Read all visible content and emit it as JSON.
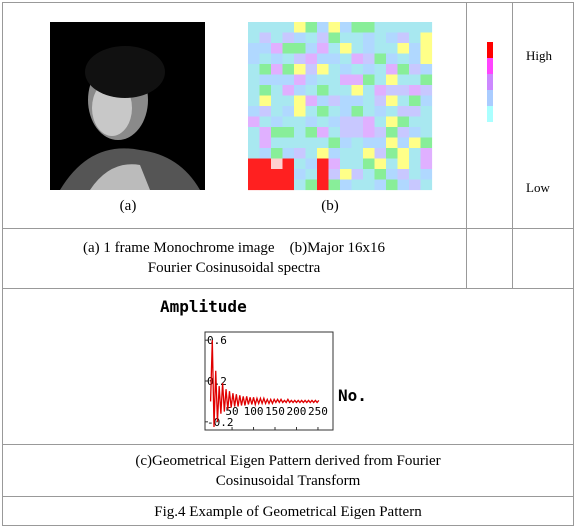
{
  "panel_labels": [
    "(a)",
    "(b)"
  ],
  "colorbar": {
    "high": "High",
    "low": "Low",
    "colors": [
      "#ff0000",
      "#ff44ff",
      "#cc88ff",
      "#aaccff",
      "#aaffff"
    ]
  },
  "caption_ab": [
    "(a) 1 frame Monochrome image    (b)Major 16x16",
    "Fourier Cosinusoidal spectra"
  ],
  "chart_data": {
    "type": "line",
    "y_label": "Amplitude",
    "x_label": "No.",
    "xlim": [
      -13,
      285
    ],
    "ylim": [
      -0.28,
      0.68
    ],
    "xticks": [
      50,
      100,
      150,
      200,
      250
    ],
    "yticks": [
      0.6,
      0.2,
      -0.2
    ],
    "x": [
      0,
      4,
      8,
      12,
      16,
      20,
      24,
      28,
      32,
      36,
      40,
      44,
      48,
      52,
      56,
      60,
      64,
      68,
      72,
      76,
      80,
      84,
      88,
      92,
      96,
      100,
      104,
      108,
      112,
      116,
      120,
      124,
      128,
      132,
      136,
      140,
      144,
      148,
      152,
      156,
      160,
      164,
      168,
      172,
      176,
      180,
      184,
      188,
      192,
      196,
      200,
      204,
      208,
      212,
      216,
      220,
      224,
      228,
      232,
      236,
      240,
      244,
      248,
      252
    ],
    "series": [
      {
        "color": "#e00000",
        "values": [
          0,
          0.6,
          -0.25,
          0.3,
          -0.2,
          0.15,
          -0.12,
          0.18,
          -0.1,
          0.12,
          -0.08,
          0.1,
          -0.06,
          0.08,
          -0.05,
          0.07,
          -0.05,
          0.06,
          -0.04,
          0.05,
          -0.04,
          0.05,
          -0.03,
          0.04,
          -0.03,
          0.04,
          -0.03,
          0.03,
          -0.02,
          0.03,
          -0.02,
          0.03,
          -0.02,
          0.02,
          -0.02,
          0.02,
          -0.02,
          0.02,
          -0.01,
          0.02,
          -0.01,
          0.02,
          -0.01,
          0.01,
          -0.01,
          0.02,
          -0.01,
          0.01,
          -0.01,
          0.01,
          -0.01,
          0.01,
          -0.01,
          0.01,
          -0.01,
          0.01,
          -0.01,
          0.01,
          -0.01,
          0.01,
          -0.01,
          0.01,
          -0.01,
          0.01
        ]
      }
    ]
  },
  "caption_c": [
    "(c)Geometrical Eigen Pattern derived from Fourier",
    "Cosinusoidal Transform"
  ],
  "figure_caption": "Fig.4 Example of Geometrical Eigen Pattern"
}
